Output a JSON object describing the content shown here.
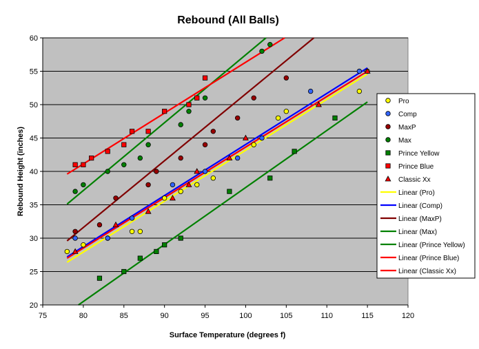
{
  "chart_data": {
    "type": "scatter",
    "title": "Rebound (All Balls)",
    "xlabel": "Surface Temperature (degrees f)",
    "ylabel": "Rebound Height (inches)",
    "xlim": [
      75,
      120
    ],
    "ylim": [
      20,
      60
    ],
    "x_ticks": [
      75,
      80,
      85,
      90,
      95,
      100,
      105,
      110,
      115,
      120
    ],
    "y_ticks": [
      20,
      25,
      30,
      35,
      40,
      45,
      50,
      55,
      60
    ],
    "grid": "horizontal",
    "plot_background": "#c0c0c0",
    "legend_position": "right",
    "series": [
      {
        "name": "Pro",
        "marker": "circle",
        "color": "#ffff00",
        "points": [
          [
            78,
            28
          ],
          [
            80,
            29
          ],
          [
            83,
            30
          ],
          [
            86,
            31
          ],
          [
            87,
            31
          ],
          [
            90,
            36
          ],
          [
            92,
            37
          ],
          [
            94,
            38
          ],
          [
            96,
            39
          ],
          [
            101,
            44
          ],
          [
            104,
            48
          ],
          [
            105,
            49
          ],
          [
            114,
            52
          ],
          [
            115,
            55
          ]
        ]
      },
      {
        "name": "Comp",
        "marker": "circle",
        "color": "#3366ff",
        "points": [
          [
            79,
            30
          ],
          [
            83,
            30
          ],
          [
            86,
            33
          ],
          [
            91,
            38
          ],
          [
            95,
            40
          ],
          [
            99,
            42
          ],
          [
            102,
            45
          ],
          [
            108,
            52
          ],
          [
            114,
            55
          ]
        ]
      },
      {
        "name": "MaxP",
        "marker": "circle",
        "color": "#990000",
        "points": [
          [
            79,
            31
          ],
          [
            82,
            32
          ],
          [
            84,
            36
          ],
          [
            88,
            38
          ],
          [
            89,
            40
          ],
          [
            92,
            42
          ],
          [
            95,
            44
          ],
          [
            96,
            46
          ],
          [
            99,
            48
          ],
          [
            101,
            51
          ],
          [
            105,
            54
          ]
        ]
      },
      {
        "name": "Max",
        "marker": "circle",
        "color": "#008000",
        "points": [
          [
            79,
            37
          ],
          [
            80,
            38
          ],
          [
            83,
            40
          ],
          [
            85,
            41
          ],
          [
            87,
            42
          ],
          [
            88,
            44
          ],
          [
            92,
            47
          ],
          [
            93,
            49
          ],
          [
            95,
            51
          ],
          [
            102,
            58
          ],
          [
            103,
            59
          ]
        ]
      },
      {
        "name": "Prince Yellow",
        "marker": "square",
        "color": "#008000",
        "points": [
          [
            82,
            24
          ],
          [
            85,
            25
          ],
          [
            87,
            27
          ],
          [
            89,
            28
          ],
          [
            90,
            29
          ],
          [
            92,
            30
          ],
          [
            98,
            37
          ],
          [
            103,
            39
          ],
          [
            106,
            43
          ],
          [
            111,
            48
          ]
        ]
      },
      {
        "name": "Prince Blue",
        "marker": "square",
        "color": "#ff0000",
        "points": [
          [
            79,
            41
          ],
          [
            80,
            41
          ],
          [
            81,
            42
          ],
          [
            83,
            43
          ],
          [
            85,
            44
          ],
          [
            86,
            46
          ],
          [
            88,
            46
          ],
          [
            90,
            49
          ],
          [
            93,
            50
          ],
          [
            94,
            51
          ],
          [
            95,
            54
          ]
        ]
      },
      {
        "name": "Classic Xx",
        "marker": "triangle",
        "color": "#ff0000",
        "points": [
          [
            79,
            28
          ],
          [
            84,
            32
          ],
          [
            88,
            34
          ],
          [
            91,
            36
          ],
          [
            93,
            38
          ],
          [
            94,
            40
          ],
          [
            98,
            42
          ],
          [
            100,
            45
          ],
          [
            109,
            50
          ],
          [
            115,
            55
          ]
        ]
      }
    ],
    "trendlines": [
      {
        "name": "Linear (Pro)",
        "color": "#ffff00",
        "from": [
          78,
          26.4
        ],
        "to": [
          115,
          54.6
        ]
      },
      {
        "name": "Linear (Comp)",
        "color": "#0000ff",
        "from": [
          78,
          27.2
        ],
        "to": [
          115,
          55.5
        ]
      },
      {
        "name": "Linear (MaxP)",
        "color": "#800000",
        "from": [
          78,
          29.6
        ],
        "to": [
          108.4,
          60
        ]
      },
      {
        "name": "Linear (Max)",
        "color": "#008000",
        "from": [
          78,
          35.1
        ],
        "to": [
          102.5,
          60
        ]
      },
      {
        "name": "Linear (Prince Yellow)",
        "color": "#008000",
        "from": [
          79.4,
          20
        ],
        "to": [
          115,
          50.4
        ]
      },
      {
        "name": "Linear (Prince Blue)",
        "color": "#ff0000",
        "from": [
          78,
          39.6
        ],
        "to": [
          104.8,
          60
        ]
      },
      {
        "name": "Linear (Classic Xx)",
        "color": "#ff0000",
        "from": [
          78,
          27.0
        ],
        "to": [
          115,
          55.0
        ]
      }
    ]
  }
}
